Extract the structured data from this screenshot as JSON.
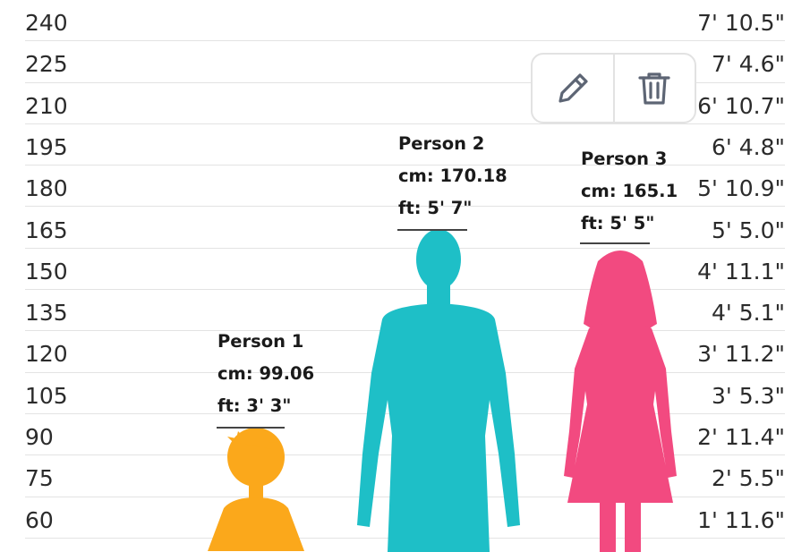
{
  "scale": {
    "cm_labels": [
      "240",
      "225",
      "210",
      "195",
      "180",
      "165",
      "150",
      "135",
      "120",
      "105",
      "90",
      "75",
      "60"
    ],
    "ft_labels": [
      "7' 10.5\"",
      "7' 4.6\"",
      "6' 10.7\"",
      "6' 4.8\"",
      "5' 10.9\"",
      "5' 5.0\"",
      "4' 11.1\"",
      "4' 5.1\"",
      "3' 11.2\"",
      "3' 5.3\"",
      "2' 11.4\"",
      "2' 5.5\"",
      "1' 11.6\""
    ]
  },
  "people": [
    {
      "name": "Person 1",
      "cm": "cm: 99.06",
      "ft": "ft: 3' 3\"",
      "height_cm": 99.06,
      "color": "#FBA81B",
      "icon": "child-silhouette-icon"
    },
    {
      "name": "Person 2",
      "cm": "cm: 170.18",
      "ft": "ft: 5' 7\"",
      "height_cm": 170.18,
      "color": "#1EBFC7",
      "icon": "man-silhouette-icon"
    },
    {
      "name": "Person 3",
      "cm": "cm: 165.1",
      "ft": "ft: 5' 5\"",
      "height_cm": 165.1,
      "color": "#F24A80",
      "icon": "woman-silhouette-icon"
    }
  ],
  "toolbar": {
    "edit_icon": "pencil-icon",
    "delete_icon": "trash-icon",
    "icon_color": "#5d6574"
  }
}
